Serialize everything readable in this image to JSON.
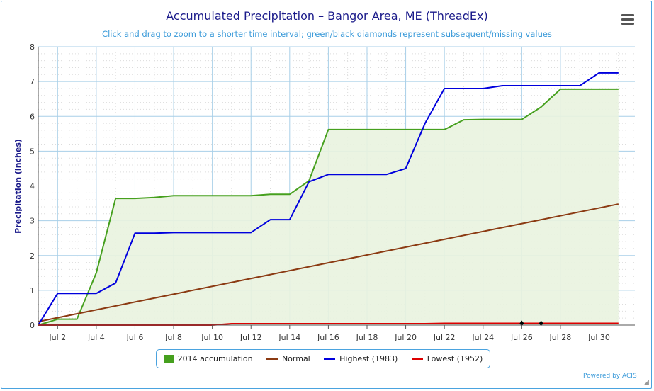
{
  "title": "Accumulated Precipitation – Bangor Area, ME (ThreadEx)",
  "subtitle": "Click and drag to zoom to a shorter time interval; green/black diamonds represent subsequent/missing values",
  "credits": "Powered by ACIS",
  "menu_icon": "hamburger-menu-icon",
  "colors": {
    "accumulation": "#46a01e",
    "accumulation_fill": "#e9f3df",
    "normal": "#8b3a12",
    "highest": "#0000dd",
    "lowest": "#dd0000",
    "grid_major": "#a8cfe8",
    "grid_minor": "#dcdcdc",
    "title": "#1a1a8a",
    "subtitle": "#3a9ad9"
  },
  "chart_data": {
    "type": "line",
    "title": "Accumulated Precipitation – Bangor Area, ME (ThreadEx)",
    "subtitle": "Click and drag to zoom to a shorter time interval; green/black diamonds represent subsequent/missing values",
    "xlabel": "",
    "ylabel": "Precipitation (inches)",
    "ylim": [
      0,
      8
    ],
    "yticks": [
      "0",
      "1",
      "2",
      "3",
      "4",
      "5",
      "6",
      "7",
      "8"
    ],
    "xlim": [
      1,
      31
    ],
    "xticks": [
      {
        "day": 2,
        "label": "Jul 2"
      },
      {
        "day": 4,
        "label": "Jul 4"
      },
      {
        "day": 6,
        "label": "Jul 6"
      },
      {
        "day": 8,
        "label": "Jul 8"
      },
      {
        "day": 10,
        "label": "Jul 10"
      },
      {
        "day": 12,
        "label": "Jul 12"
      },
      {
        "day": 14,
        "label": "Jul 14"
      },
      {
        "day": 16,
        "label": "Jul 16"
      },
      {
        "day": 18,
        "label": "Jul 18"
      },
      {
        "day": 20,
        "label": "Jul 20"
      },
      {
        "day": 22,
        "label": "Jul 22"
      },
      {
        "day": 24,
        "label": "Jul 24"
      },
      {
        "day": 26,
        "label": "Jul 26"
      },
      {
        "day": 28,
        "label": "Jul 28"
      },
      {
        "day": 30,
        "label": "Jul 30"
      }
    ],
    "grid": true,
    "legend_position": "bottom-center",
    "series": [
      {
        "name": "2014 accumulation",
        "kind": "area",
        "color": "#46a01e",
        "x": [
          1,
          2,
          3,
          4,
          5,
          6,
          7,
          8,
          9,
          10,
          11,
          12,
          13,
          14,
          15,
          16,
          17,
          18,
          19,
          20,
          21,
          22,
          23,
          24,
          25,
          26,
          27,
          28,
          29,
          30,
          31
        ],
        "values": [
          0.0,
          0.17,
          0.17,
          1.5,
          3.64,
          3.64,
          3.67,
          3.72,
          3.72,
          3.72,
          3.72,
          3.72,
          3.76,
          3.76,
          4.15,
          5.62,
          5.62,
          5.62,
          5.62,
          5.62,
          5.62,
          5.62,
          5.9,
          5.91,
          5.91,
          5.91,
          6.27,
          6.78,
          6.78,
          6.78,
          6.78
        ]
      },
      {
        "name": "Normal",
        "kind": "line",
        "color": "#8b3a12",
        "x": [
          1,
          31
        ],
        "values": [
          0.1,
          3.48
        ]
      },
      {
        "name": "Highest (1983)",
        "kind": "line",
        "color": "#0000dd",
        "x": [
          1,
          2,
          3,
          4,
          5,
          6,
          7,
          8,
          9,
          10,
          11,
          12,
          13,
          14,
          15,
          16,
          17,
          18,
          19,
          20,
          21,
          22,
          23,
          24,
          25,
          26,
          27,
          28,
          29,
          30,
          31
        ],
        "values": [
          0.0,
          0.91,
          0.91,
          0.91,
          1.21,
          2.64,
          2.64,
          2.66,
          2.66,
          2.66,
          2.66,
          2.66,
          3.03,
          3.03,
          4.12,
          4.33,
          4.33,
          4.33,
          4.33,
          4.5,
          5.8,
          6.8,
          6.8,
          6.8,
          6.88,
          6.88,
          6.88,
          6.88,
          6.88,
          7.25,
          7.25
        ]
      },
      {
        "name": "Lowest (1952)",
        "kind": "line",
        "color": "#dd0000",
        "x": [
          1,
          2,
          3,
          4,
          5,
          6,
          7,
          8,
          9,
          10,
          11,
          12,
          13,
          14,
          15,
          16,
          17,
          18,
          19,
          20,
          21,
          22,
          23,
          24,
          25,
          26,
          27,
          28,
          29,
          30,
          31
        ],
        "values": [
          0.0,
          0.0,
          0.0,
          0.0,
          0.0,
          0.0,
          0.0,
          0.0,
          0.0,
          0.0,
          0.04,
          0.04,
          0.04,
          0.04,
          0.04,
          0.04,
          0.04,
          0.04,
          0.04,
          0.04,
          0.04,
          0.05,
          0.05,
          0.05,
          0.05,
          0.05,
          0.05,
          0.05,
          0.05,
          0.05,
          0.05
        ],
        "missing_markers_x": [
          26,
          27
        ]
      }
    ]
  },
  "legend": [
    {
      "label": "2014 accumulation",
      "color": "#46a01e",
      "style": "box"
    },
    {
      "label": "Normal",
      "color": "#8b3a12",
      "style": "line"
    },
    {
      "label": "Highest (1983)",
      "color": "#0000dd",
      "style": "line"
    },
    {
      "label": "Lowest (1952)",
      "color": "#dd0000",
      "style": "line"
    }
  ]
}
